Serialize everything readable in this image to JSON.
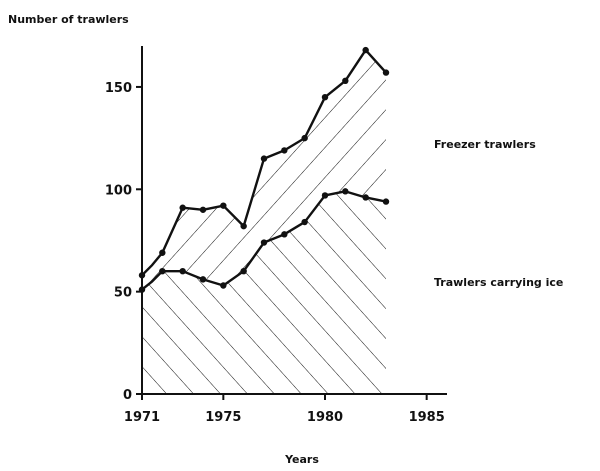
{
  "chart_data": {
    "type": "area",
    "ylabel": "Number of trawlers",
    "xlabel": "Years",
    "xlim": [
      1971,
      1986
    ],
    "ylim": [
      0,
      170
    ],
    "x_ticks": [
      "1971",
      "1975",
      "1980",
      "1985"
    ],
    "y_ticks": [
      "0",
      "50",
      "100",
      "150"
    ],
    "grid": false,
    "series": [
      {
        "name": "Trawlers carrying ice",
        "x": [
          1971,
          1971.5,
          1972,
          1973,
          1974,
          1975,
          1976,
          1977,
          1978,
          1979,
          1980,
          1981,
          1982,
          1983
        ],
        "values": [
          51,
          55,
          60,
          60,
          56,
          53,
          60,
          74,
          78,
          84,
          97,
          99,
          96,
          94
        ]
      },
      {
        "name": "Freezer trawlers",
        "x": [
          1971,
          1971.5,
          1972,
          1973,
          1974,
          1975,
          1976,
          1977,
          1978,
          1979,
          1980,
          1981,
          1982,
          1983
        ],
        "values": [
          58,
          63,
          69,
          91,
          90,
          92,
          82,
          115,
          119,
          125,
          145,
          153,
          168,
          157
        ]
      }
    ]
  }
}
